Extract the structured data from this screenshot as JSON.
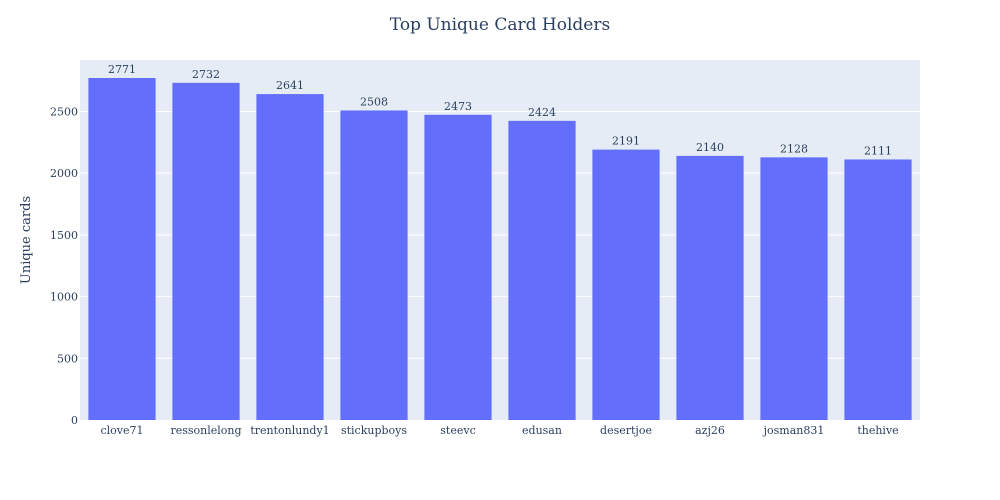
{
  "chart_data": {
    "type": "bar",
    "title": "Top Unique Card Holders",
    "xlabel": "",
    "ylabel": "Unique cards",
    "categories": [
      "clove71",
      "ressonlelong",
      "trentonlundy1",
      "stickupboys",
      "steevc",
      "edusan",
      "desertjoe",
      "azj26",
      "josman831",
      "thehive"
    ],
    "values": [
      2771,
      2732,
      2641,
      2508,
      2473,
      2424,
      2191,
      2140,
      2128,
      2111
    ],
    "data_labels": [
      "2771",
      "2732",
      "2641",
      "2508",
      "2473",
      "2424",
      "2191",
      "2140",
      "2128",
      "2111"
    ],
    "yticks": [
      0,
      500,
      1000,
      1500,
      2000,
      2500
    ],
    "ylim": [
      0,
      2917
    ],
    "grid": true,
    "legend": "none",
    "colors": {
      "bar": "#636efa",
      "plot_bg": "#e5ecf6",
      "grid": "#ffffff",
      "text": "#2a3f5f"
    }
  }
}
